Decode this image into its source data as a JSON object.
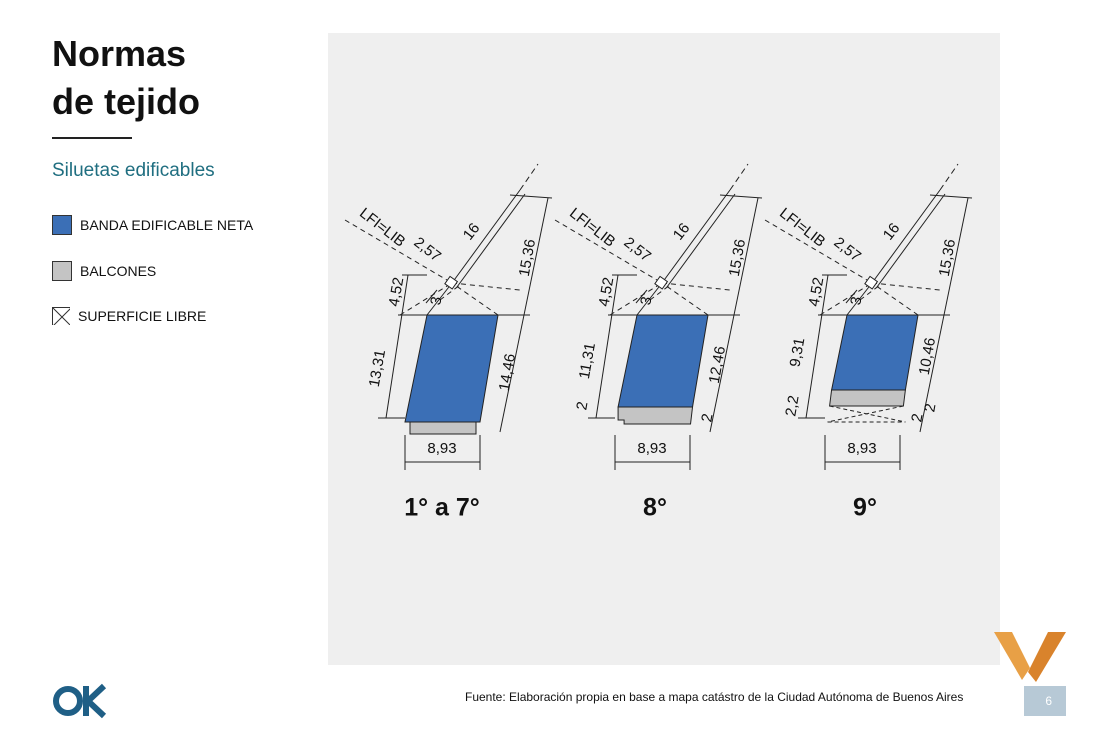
{
  "header": {
    "title_lines": [
      "Normas",
      "de tejido"
    ],
    "subtitle": "Siluetas edificables"
  },
  "legend": [
    {
      "label": "BANDA EDIFICABLE NETA"
    },
    {
      "label": "BALCONES"
    },
    {
      "label": "SUPERFICIE LIBRE"
    }
  ],
  "diagrams": [
    {
      "caption": "1° a 7°",
      "labels": {
        "lfi": "LFI=LIB",
        "setback": "2,57",
        "slope": "16",
        "upper": "4,52",
        "step": "3",
        "top": "15,36",
        "left": "13,31",
        "right": "14,46",
        "width": "8,93"
      }
    },
    {
      "caption": "8°",
      "labels": {
        "lfi": "LFI=LIB",
        "setback": "2,57",
        "slope": "16",
        "upper": "4,52",
        "step": "3",
        "top": "15,36",
        "left": "11,31",
        "right": "12,46",
        "width": "8,93",
        "left_extra": "2",
        "right_extra": "2"
      }
    },
    {
      "caption": "9°",
      "labels": {
        "lfi": "LFI=LIB",
        "setback": "2,57",
        "slope": "16",
        "upper": "4,52",
        "step": "3",
        "top": "15,36",
        "left": "9,31",
        "right": "10,46",
        "width": "8,93",
        "left_extra": "2,2",
        "right_extra": "2",
        "right_extra2": "2"
      }
    }
  ],
  "footer": {
    "source": "Fuente: Elaboración propia en base a mapa catástro de la Ciudad  Autónoma de Buenos Aires",
    "page": "6"
  }
}
